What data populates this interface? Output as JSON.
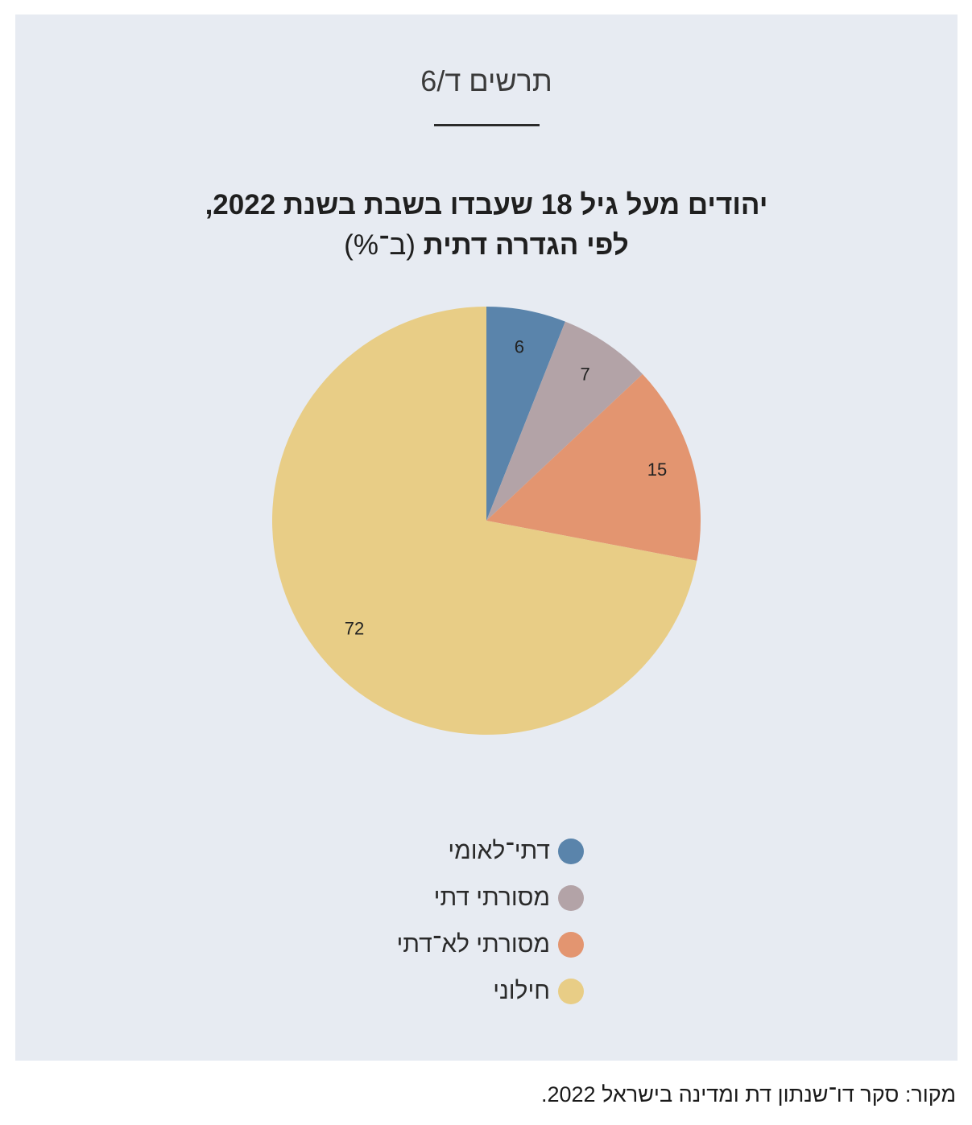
{
  "figure_label": "תרשים ד/6",
  "title_line1": "יהודים מעל גיל 18 שעבדו בשבת בשנת 2022,",
  "title_line2_bold": "לפי הגדרה דתית",
  "title_line2_unit": "(ב־%)",
  "source": "מקור: סקר דו־שנתון דת ומדינה בישראל 2022.",
  "chart_data": {
    "type": "pie",
    "title": "יהודים מעל גיל 18 שעבדו בשבת בשנת 2022, לפי הגדרה דתית (ב־%)",
    "start": "top, clockwise",
    "slices": [
      {
        "label": "דתי־לאומי",
        "value": 6,
        "data_label": "6",
        "color": "#5a84ab"
      },
      {
        "label": "מסורתי דתי",
        "value": 7,
        "data_label": "7",
        "color": "#b3a3a7"
      },
      {
        "label": "מסורתי לא־דתי",
        "value": 15,
        "data_label": "15",
        "color": "#e39570"
      },
      {
        "label": "חילוני",
        "value": 72,
        "data_label": "72",
        "color": "#e8cd86"
      }
    ],
    "legend_position": "bottom"
  }
}
